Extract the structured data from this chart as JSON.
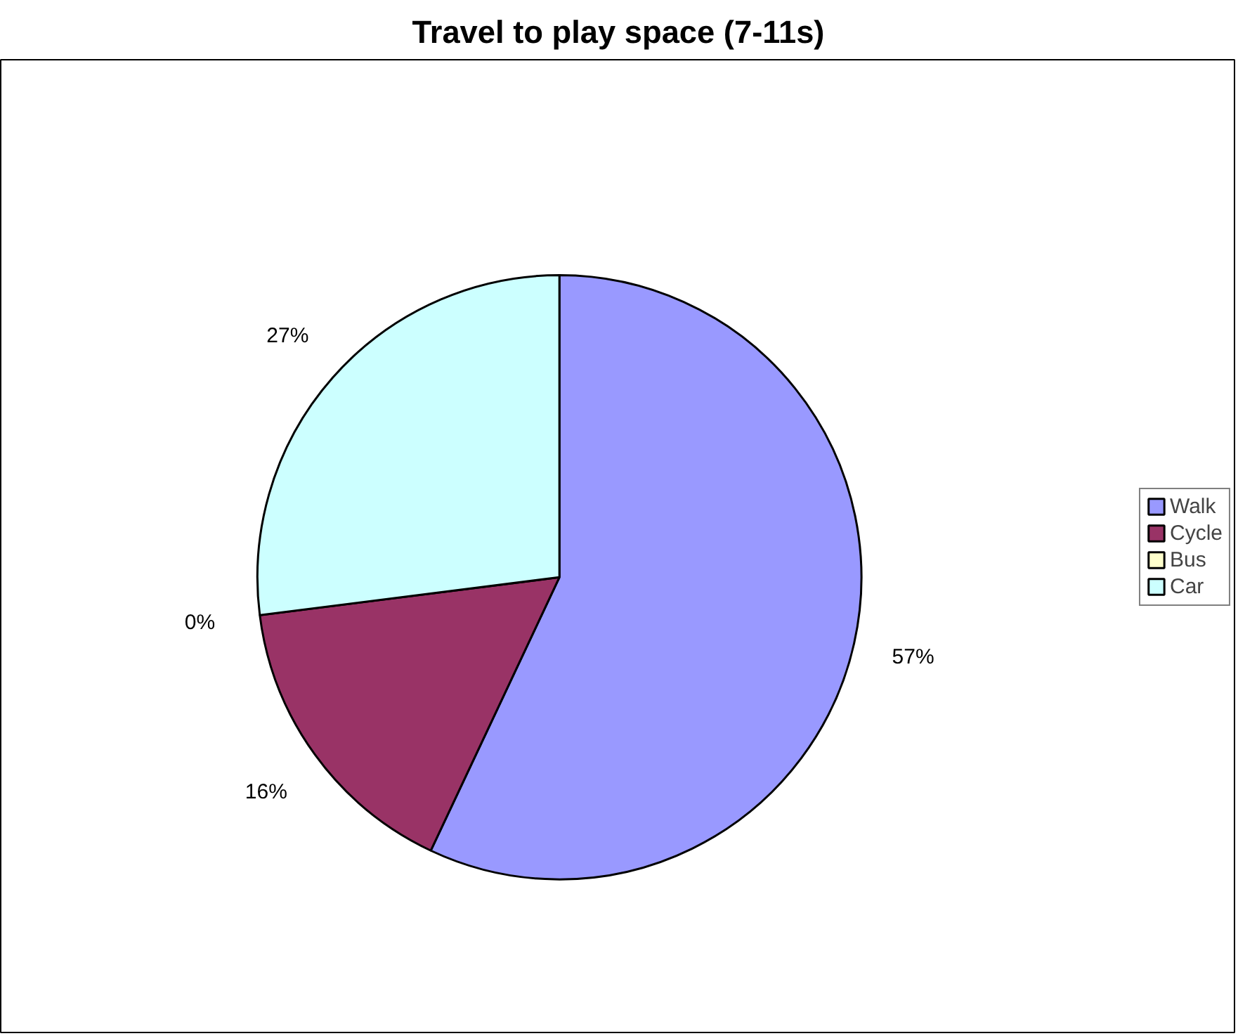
{
  "chart_data": {
    "type": "pie",
    "title": "Travel to play space (7-11s)",
    "categories": [
      "Walk",
      "Cycle",
      "Bus",
      "Car"
    ],
    "values": [
      57,
      16,
      0,
      27
    ],
    "colors": [
      "#9999ff",
      "#993366",
      "#ffffcc",
      "#ccffff"
    ],
    "value_labels": [
      "57%",
      "16%",
      "0%",
      "27%"
    ],
    "legend": "right"
  }
}
